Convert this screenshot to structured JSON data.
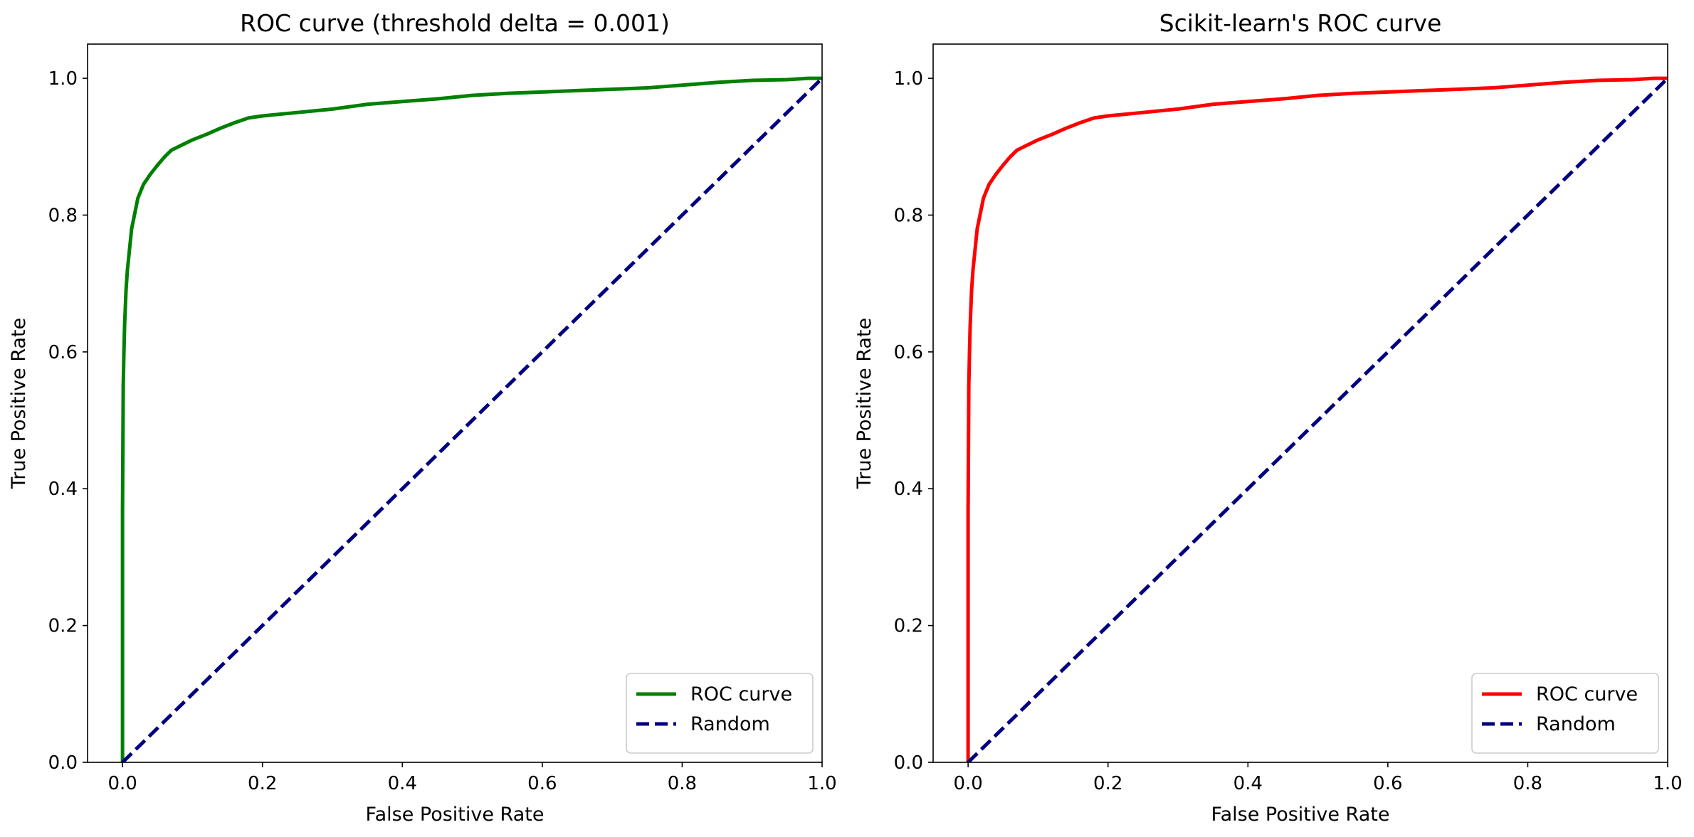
{
  "chart_data": [
    {
      "type": "line",
      "title": "ROC curve (threshold delta = 0.001)",
      "xlabel": "False Positive Rate",
      "ylabel": "True Positive Rate",
      "xlim": [
        -0.05,
        1.0
      ],
      "ylim": [
        0.0,
        1.05
      ],
      "xticks": [
        0.0,
        0.2,
        0.4,
        0.6,
        0.8,
        1.0
      ],
      "yticks": [
        0.0,
        0.2,
        0.4,
        0.6,
        0.8,
        1.0
      ],
      "xtick_labels": [
        "0.0",
        "0.2",
        "0.4",
        "0.6",
        "0.8",
        "1.0"
      ],
      "ytick_labels": [
        "0.0",
        "0.2",
        "0.4",
        "0.6",
        "0.8",
        "1.0"
      ],
      "grid": false,
      "legend_position": "lower-right",
      "series": [
        {
          "name": "ROC curve",
          "color": "#008000",
          "style": "solid",
          "x": [
            0.0,
            0.0,
            0.001,
            0.002,
            0.003,
            0.005,
            0.007,
            0.01,
            0.013,
            0.017,
            0.022,
            0.03,
            0.04,
            0.05,
            0.06,
            0.07,
            0.08,
            0.1,
            0.12,
            0.14,
            0.16,
            0.18,
            0.2,
            0.25,
            0.3,
            0.35,
            0.4,
            0.45,
            0.5,
            0.55,
            0.6,
            0.65,
            0.7,
            0.75,
            0.8,
            0.85,
            0.9,
            0.95,
            0.98,
            1.0
          ],
          "y": [
            0.0,
            0.37,
            0.55,
            0.6,
            0.64,
            0.69,
            0.72,
            0.75,
            0.78,
            0.8,
            0.825,
            0.845,
            0.86,
            0.873,
            0.885,
            0.895,
            0.9,
            0.91,
            0.918,
            0.927,
            0.935,
            0.942,
            0.945,
            0.95,
            0.955,
            0.962,
            0.966,
            0.97,
            0.975,
            0.978,
            0.98,
            0.982,
            0.984,
            0.986,
            0.99,
            0.994,
            0.997,
            0.998,
            1.0,
            1.0
          ]
        },
        {
          "name": "Random",
          "color": "#000080",
          "style": "dashed",
          "x": [
            0.0,
            1.0
          ],
          "y": [
            0.0,
            1.0
          ]
        }
      ]
    },
    {
      "type": "line",
      "title": "Scikit-learn's ROC curve",
      "xlabel": "False Positive Rate",
      "ylabel": "True Positive Rate",
      "xlim": [
        -0.05,
        1.0
      ],
      "ylim": [
        0.0,
        1.05
      ],
      "xticks": [
        0.0,
        0.2,
        0.4,
        0.6,
        0.8,
        1.0
      ],
      "yticks": [
        0.0,
        0.2,
        0.4,
        0.6,
        0.8,
        1.0
      ],
      "xtick_labels": [
        "0.0",
        "0.2",
        "0.4",
        "0.6",
        "0.8",
        "1.0"
      ],
      "ytick_labels": [
        "0.0",
        "0.2",
        "0.4",
        "0.6",
        "0.8",
        "1.0"
      ],
      "grid": false,
      "legend_position": "lower-right",
      "series": [
        {
          "name": "ROC curve",
          "color": "#ff0000",
          "style": "solid",
          "x": [
            0.0,
            0.0,
            0.001,
            0.002,
            0.003,
            0.005,
            0.007,
            0.01,
            0.013,
            0.017,
            0.022,
            0.03,
            0.04,
            0.05,
            0.06,
            0.07,
            0.08,
            0.1,
            0.12,
            0.14,
            0.16,
            0.18,
            0.2,
            0.25,
            0.3,
            0.35,
            0.4,
            0.45,
            0.5,
            0.55,
            0.6,
            0.65,
            0.7,
            0.75,
            0.8,
            0.85,
            0.9,
            0.95,
            0.98,
            1.0
          ],
          "y": [
            0.0,
            0.37,
            0.55,
            0.6,
            0.64,
            0.69,
            0.72,
            0.75,
            0.78,
            0.8,
            0.825,
            0.845,
            0.86,
            0.873,
            0.885,
            0.895,
            0.9,
            0.91,
            0.918,
            0.927,
            0.935,
            0.942,
            0.945,
            0.95,
            0.955,
            0.962,
            0.966,
            0.97,
            0.975,
            0.978,
            0.98,
            0.982,
            0.984,
            0.986,
            0.99,
            0.994,
            0.997,
            0.998,
            1.0,
            1.0
          ]
        },
        {
          "name": "Random",
          "color": "#000080",
          "style": "dashed",
          "x": [
            0.0,
            1.0
          ],
          "y": [
            0.0,
            1.0
          ]
        }
      ]
    }
  ]
}
